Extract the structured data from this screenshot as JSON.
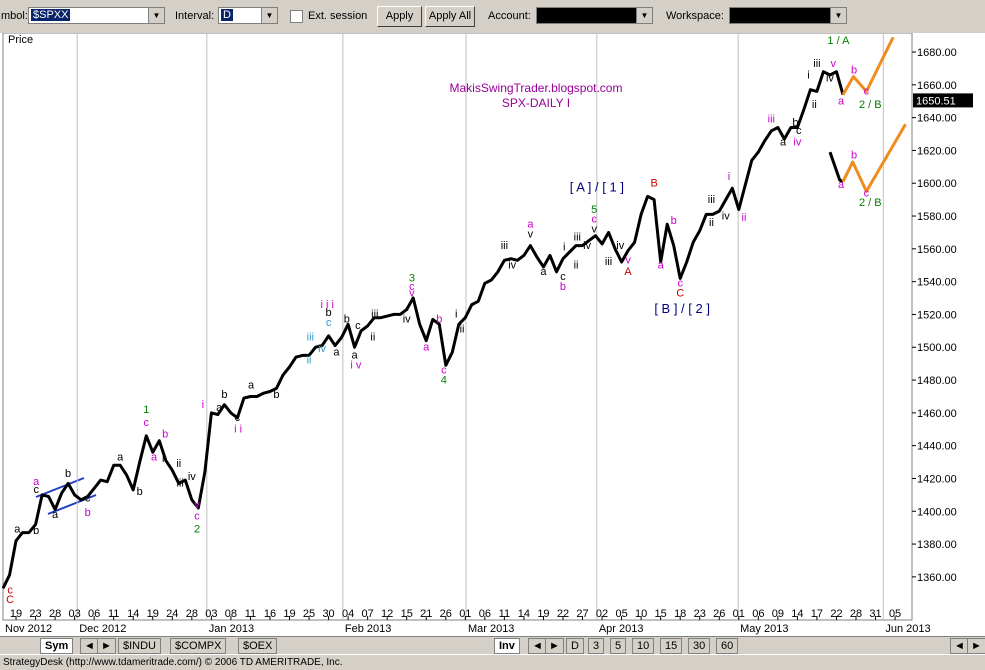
{
  "toolbar": {
    "symbol_label": "mbol:",
    "symbol": "$SPXX",
    "interval_label": "Interval:",
    "interval": "D",
    "ext_session": "Ext. session",
    "apply": "Apply",
    "apply_all": "Apply All",
    "account_label": "Account:",
    "workspace_label": "Workspace:"
  },
  "tabs": {
    "symbol_tab": "Sym",
    "indexes": [
      "$INDU",
      "$COMPX",
      "$OEX"
    ],
    "inv_tab": "Inv",
    "intervals": [
      "D",
      "3",
      "5",
      "10",
      "15",
      "30",
      "60"
    ]
  },
  "status_bar": "StrategyDesk (http://www.tdameritrade.com/) © 2006 TD AMERITRADE, Inc.",
  "chart_data": {
    "type": "line",
    "title": "SPX-DAILY I",
    "subtitle": "MakisSwingTrader.blogspot.com",
    "y_label": "Price",
    "last_price": 1650.51,
    "xlim": [
      0,
      139.6
    ],
    "ylim": [
      1333.7,
      1691.6
    ],
    "yticks": [
      {
        "value": 1360,
        "label": "1360.00"
      },
      {
        "value": 1380,
        "label": "1380.00"
      },
      {
        "value": 1400,
        "label": "1400.00"
      },
      {
        "value": 1420,
        "label": "1420.00"
      },
      {
        "value": 1440,
        "label": "1440.00"
      },
      {
        "value": 1460,
        "label": "1460.00"
      },
      {
        "value": 1480,
        "label": "1480.00"
      },
      {
        "value": 1500,
        "label": "1500.00"
      },
      {
        "value": 1520,
        "label": "1520.00"
      },
      {
        "value": 1540,
        "label": "1540.00"
      },
      {
        "value": 1560,
        "label": "1560.00"
      },
      {
        "value": 1580,
        "label": "1580.00"
      },
      {
        "value": 1600,
        "label": "1600.00"
      },
      {
        "value": 1620,
        "label": "1620.00"
      },
      {
        "value": 1640,
        "label": "1640.00"
      },
      {
        "value": 1660,
        "label": "1660.00"
      },
      {
        "value": 1680,
        "label": "1680.00"
      }
    ],
    "xticks": [
      {
        "value": 2,
        "label": "19"
      },
      {
        "value": 5,
        "label": "23"
      },
      {
        "value": 8,
        "label": "28"
      },
      {
        "value": 11,
        "label": "03"
      },
      {
        "value": 14,
        "label": "06"
      },
      {
        "value": 17,
        "label": "11"
      },
      {
        "value": 20,
        "label": "14"
      },
      {
        "value": 23,
        "label": "19"
      },
      {
        "value": 26,
        "label": "24"
      },
      {
        "value": 29,
        "label": "28"
      },
      {
        "value": 32,
        "label": "03"
      },
      {
        "value": 35,
        "label": "08"
      },
      {
        "value": 38,
        "label": "11"
      },
      {
        "value": 41,
        "label": "16"
      },
      {
        "value": 44,
        "label": "19"
      },
      {
        "value": 47,
        "label": "25"
      },
      {
        "value": 50,
        "label": "30"
      },
      {
        "value": 53,
        "label": "04"
      },
      {
        "value": 56,
        "label": "07"
      },
      {
        "value": 59,
        "label": "12"
      },
      {
        "value": 62,
        "label": "15"
      },
      {
        "value": 65,
        "label": "21"
      },
      {
        "value": 68,
        "label": "26"
      },
      {
        "value": 71,
        "label": "01"
      },
      {
        "value": 74,
        "label": "06"
      },
      {
        "value": 77,
        "label": "11"
      },
      {
        "value": 80,
        "label": "14"
      },
      {
        "value": 83,
        "label": "19"
      },
      {
        "value": 86,
        "label": "22"
      },
      {
        "value": 89,
        "label": "27"
      },
      {
        "value": 92,
        "label": "02"
      },
      {
        "value": 95,
        "label": "05"
      },
      {
        "value": 98,
        "label": "10"
      },
      {
        "value": 101,
        "label": "15"
      },
      {
        "value": 104,
        "label": "18"
      },
      {
        "value": 107,
        "label": "23"
      },
      {
        "value": 110,
        "label": "26"
      },
      {
        "value": 113,
        "label": "01"
      },
      {
        "value": 116,
        "label": "06"
      },
      {
        "value": 119,
        "label": "09"
      },
      {
        "value": 122,
        "label": "14"
      },
      {
        "value": 125,
        "label": "17"
      },
      {
        "value": 128,
        "label": "22"
      },
      {
        "value": 131,
        "label": "28"
      },
      {
        "value": 134,
        "label": "31"
      },
      {
        "value": 137,
        "label": "05"
      }
    ],
    "month_ticks": [
      {
        "value": 0,
        "label": "Nov 2012"
      },
      {
        "value": 11.4,
        "label": "Dec 2012"
      },
      {
        "value": 31.3,
        "label": "Jan 2013"
      },
      {
        "value": 52.2,
        "label": "Feb 2013"
      },
      {
        "value": 71.1,
        "label": "Mar 2013"
      },
      {
        "value": 91.2,
        "label": "Apr 2013"
      },
      {
        "value": 112.9,
        "label": "May 2013"
      },
      {
        "value": 135.2,
        "label": "Jun 2013"
      }
    ],
    "series": [
      {
        "color": "#000000",
        "values": [
          1353,
          1361,
          1382,
          1387,
          1387,
          1392,
          1410,
          1409,
          1401,
          1411,
          1417,
          1410,
          1407,
          1409,
          1414,
          1419,
          1418,
          1428,
          1428,
          1422,
          1413,
          1430,
          1446,
          1436,
          1443,
          1431,
          1425,
          1417,
          1419,
          1407,
          1402,
          1424,
          1460,
          1459,
          1465,
          1460,
          1457,
          1469,
          1470,
          1470,
          1472,
          1473,
          1475,
          1483,
          1488,
          1494,
          1495,
          1495,
          1500,
          1501,
          1507,
          1501,
          1506,
          1514,
          1500,
          1510,
          1513,
          1518,
          1518,
          1519,
          1520,
          1520,
          1523,
          1530,
          1514,
          1504,
          1517,
          1514,
          1489,
          1497,
          1514,
          1518,
          1526,
          1528,
          1539,
          1541,
          1546,
          1553,
          1554,
          1553,
          1556,
          1562,
          1555,
          1549,
          1556,
          1546,
          1554,
          1558,
          1562,
          1562,
          1565,
          1568,
          1563,
          1570,
          1560,
          1552,
          1559,
          1564,
          1581,
          1592,
          1590,
          1552,
          1575,
          1562,
          1542,
          1552,
          1564,
          1571,
          1581,
          1581,
          1583,
          1590,
          1597,
          1584,
          1599,
          1614,
          1619,
          1626,
          1632,
          1634,
          1627,
          1634,
          1634,
          1645,
          1657,
          1656,
          1668,
          1666,
          1668,
          1654
        ]
      },
      {
        "color": "#000000",
        "x": [
          127,
          128.5,
          129
        ],
        "values": [
          1619,
          1602,
          1601
        ]
      },
      {
        "color": "#f08c1e",
        "x": [
          129,
          130.6,
          132.6,
          136.7
        ],
        "values": [
          1654,
          1665,
          1656,
          1689
        ]
      },
      {
        "color": "#f08c1e",
        "x": [
          129,
          130.5,
          132.6,
          138.6
        ],
        "values": [
          1601,
          1613,
          1595,
          1636
        ]
      }
    ],
    "annotations": [
      {
        "text": "c",
        "color": "#cc0000",
        "x": 1.1,
        "y": 1350
      },
      {
        "text": "C",
        "color": "#cc0000",
        "x": 1.1,
        "y": 1344
      },
      {
        "text": "a",
        "color": "#000000",
        "x": 2.2,
        "y": 1387
      },
      {
        "text": "b",
        "color": "#000000",
        "x": 5.1,
        "y": 1386
      },
      {
        "text": "a",
        "color": "#cc00cc",
        "x": 5.1,
        "y": 1416
      },
      {
        "text": "c",
        "color": "#000000",
        "x": 5.1,
        "y": 1411
      },
      {
        "text": "a",
        "color": "#000000",
        "x": 8,
        "y": 1396
      },
      {
        "text": "b",
        "color": "#000000",
        "x": 10,
        "y": 1421
      },
      {
        "text": "c",
        "color": "#000000",
        "x": 13,
        "y": 1406
      },
      {
        "text": "b",
        "color": "#cc00cc",
        "x": 13,
        "y": 1397
      },
      {
        "text": "a",
        "color": "#000000",
        "x": 18,
        "y": 1431
      },
      {
        "text": "b",
        "color": "#000000",
        "x": 21,
        "y": 1410
      },
      {
        "text": "1",
        "color": "#008000",
        "x": 22,
        "y": 1460
      },
      {
        "text": "c",
        "color": "#cc00cc",
        "x": 22,
        "y": 1452
      },
      {
        "text": "a",
        "color": "#cc00cc",
        "x": 23.2,
        "y": 1431
      },
      {
        "text": "b",
        "color": "#cc00cc",
        "x": 24.9,
        "y": 1445
      },
      {
        "text": "i",
        "color": "#000000",
        "x": 24.6,
        "y": 1430
      },
      {
        "text": "ii",
        "color": "#000000",
        "x": 27,
        "y": 1427
      },
      {
        "text": "iii",
        "color": "#000000",
        "x": 27.2,
        "y": 1415
      },
      {
        "text": "iv",
        "color": "#000000",
        "x": 29,
        "y": 1419
      },
      {
        "text": "v",
        "color": "#cc00cc",
        "x": 29.8,
        "y": 1402
      },
      {
        "text": "c",
        "color": "#cc00cc",
        "x": 29.8,
        "y": 1395
      },
      {
        "text": "2",
        "color": "#008000",
        "x": 29.8,
        "y": 1387
      },
      {
        "text": "i",
        "color": "#cc00cc",
        "x": 30.7,
        "y": 1463
      },
      {
        "text": "b",
        "color": "#000000",
        "x": 34,
        "y": 1469
      },
      {
        "text": "a",
        "color": "#000000",
        "x": 33.2,
        "y": 1461
      },
      {
        "text": "c",
        "color": "#000000",
        "x": 36,
        "y": 1455
      },
      {
        "text": "i i",
        "color": "#cc00cc",
        "x": 36.1,
        "y": 1448
      },
      {
        "text": "a",
        "color": "#000000",
        "x": 38.1,
        "y": 1475
      },
      {
        "text": "b",
        "color": "#000000",
        "x": 42,
        "y": 1469
      },
      {
        "text": "iii",
        "color": "#3399cc",
        "x": 47.2,
        "y": 1504
      },
      {
        "text": "ii",
        "color": "#3399cc",
        "x": 47,
        "y": 1490
      },
      {
        "text": "iv",
        "color": "#3399cc",
        "x": 49,
        "y": 1497
      },
      {
        "text": "c",
        "color": "#3399cc",
        "x": 50,
        "y": 1513
      },
      {
        "text": "b",
        "color": "#000000",
        "x": 50,
        "y": 1519
      },
      {
        "text": "a",
        "color": "#000000",
        "x": 51.2,
        "y": 1495
      },
      {
        "text": "i i i",
        "color": "#cc00cc",
        "x": 49.8,
        "y": 1524
      },
      {
        "text": "b",
        "color": "#000000",
        "x": 52.8,
        "y": 1515
      },
      {
        "text": "i v",
        "color": "#cc00cc",
        "x": 54.2,
        "y": 1487
      },
      {
        "text": "c",
        "color": "#000000",
        "x": 54.5,
        "y": 1511
      },
      {
        "text": "a",
        "color": "#000000",
        "x": 54,
        "y": 1493
      },
      {
        "text": "iii",
        "color": "#000000",
        "x": 57.1,
        "y": 1518
      },
      {
        "text": "ii",
        "color": "#000000",
        "x": 56.8,
        "y": 1504
      },
      {
        "text": "iv",
        "color": "#000000",
        "x": 62,
        "y": 1515
      },
      {
        "text": "3",
        "color": "#008000",
        "x": 62.8,
        "y": 1540
      },
      {
        "text": "c",
        "color": "#cc00cc",
        "x": 62.8,
        "y": 1535
      },
      {
        "text": "v",
        "color": "#cc00cc",
        "x": 62.8,
        "y": 1531
      },
      {
        "text": "a",
        "color": "#cc00cc",
        "x": 65,
        "y": 1498
      },
      {
        "text": "b",
        "color": "#cc00cc",
        "x": 67,
        "y": 1515
      },
      {
        "text": "c",
        "color": "#cc00cc",
        "x": 67.7,
        "y": 1484
      },
      {
        "text": "4",
        "color": "#008000",
        "x": 67.7,
        "y": 1478
      },
      {
        "text": "i",
        "color": "#000000",
        "x": 69.6,
        "y": 1518
      },
      {
        "text": "ii",
        "color": "#000000",
        "x": 70.5,
        "y": 1509
      },
      {
        "text": "iii",
        "color": "#000000",
        "x": 77,
        "y": 1560
      },
      {
        "text": "iv",
        "color": "#000000",
        "x": 78.2,
        "y": 1548
      },
      {
        "text": "a",
        "color": "#cc00cc",
        "x": 81,
        "y": 1573
      },
      {
        "text": "v",
        "color": "#000000",
        "x": 81,
        "y": 1567
      },
      {
        "text": "a",
        "color": "#000000",
        "x": 83,
        "y": 1544
      },
      {
        "text": "c",
        "color": "#000000",
        "x": 86,
        "y": 1541
      },
      {
        "text": "b",
        "color": "#cc00cc",
        "x": 86,
        "y": 1535
      },
      {
        "text": "i",
        "color": "#000000",
        "x": 86.2,
        "y": 1559
      },
      {
        "text": "ii",
        "color": "#000000",
        "x": 88,
        "y": 1548
      },
      {
        "text": "iii",
        "color": "#000000",
        "x": 88.2,
        "y": 1565
      },
      {
        "text": "iv",
        "color": "#000000",
        "x": 89.7,
        "y": 1560
      },
      {
        "text": "5",
        "color": "#008000",
        "x": 90.8,
        "y": 1582
      },
      {
        "text": "c",
        "color": "#cc00cc",
        "x": 90.8,
        "y": 1576
      },
      {
        "text": "v",
        "color": "#000000",
        "x": 90.8,
        "y": 1570
      },
      {
        "text": "iii",
        "color": "#000000",
        "x": 93,
        "y": 1550
      },
      {
        "text": "iv",
        "color": "#000000",
        "x": 94.8,
        "y": 1560
      },
      {
        "text": "v",
        "color": "#cc00cc",
        "x": 96,
        "y": 1551
      },
      {
        "text": "A",
        "color": "#cc0000",
        "x": 96,
        "y": 1544
      },
      {
        "text": "[ A ] / [ 1 ]",
        "color": "#000080",
        "x": 91.2,
        "y": 1595
      },
      {
        "text": "B",
        "color": "#cc0000",
        "x": 100,
        "y": 1598
      },
      {
        "text": "b",
        "color": "#cc00cc",
        "x": 103,
        "y": 1575
      },
      {
        "text": "a",
        "color": "#cc00cc",
        "x": 101,
        "y": 1548
      },
      {
        "text": "c",
        "color": "#cc00cc",
        "x": 104,
        "y": 1537
      },
      {
        "text": "C",
        "color": "#cc0000",
        "x": 104,
        "y": 1531
      },
      {
        "text": "[ B ] / [ 2 ]",
        "color": "#000080",
        "x": 104.3,
        "y": 1521
      },
      {
        "text": "i",
        "color": "#cc00cc",
        "x": 111.5,
        "y": 1602
      },
      {
        "text": "iii",
        "color": "#000000",
        "x": 108.8,
        "y": 1588
      },
      {
        "text": "ii",
        "color": "#000000",
        "x": 108.8,
        "y": 1574
      },
      {
        "text": "iv",
        "color": "#000000",
        "x": 111,
        "y": 1578
      },
      {
        "text": "ii",
        "color": "#cc00cc",
        "x": 113.8,
        "y": 1577
      },
      {
        "text": "iii",
        "color": "#cc00cc",
        "x": 118,
        "y": 1637
      },
      {
        "text": "a",
        "color": "#000000",
        "x": 119.8,
        "y": 1623
      },
      {
        "text": "b",
        "color": "#000000",
        "x": 121.7,
        "y": 1635
      },
      {
        "text": "c",
        "color": "#000000",
        "x": 122.2,
        "y": 1630
      },
      {
        "text": "iv",
        "color": "#cc00cc",
        "x": 122,
        "y": 1623
      },
      {
        "text": "i",
        "color": "#000000",
        "x": 123.7,
        "y": 1664
      },
      {
        "text": "ii",
        "color": "#000000",
        "x": 124.6,
        "y": 1646
      },
      {
        "text": "iii",
        "color": "#000000",
        "x": 125,
        "y": 1671
      },
      {
        "text": "iv",
        "color": "#000000",
        "x": 127,
        "y": 1662
      },
      {
        "text": "v",
        "color": "#cc00cc",
        "x": 127.5,
        "y": 1671
      },
      {
        "text": "1 / A",
        "color": "#008000",
        "x": 128.3,
        "y": 1685
      },
      {
        "text": "a",
        "color": "#cc00cc",
        "x": 128.7,
        "y": 1648
      },
      {
        "text": "b",
        "color": "#cc00cc",
        "x": 130.7,
        "y": 1667
      },
      {
        "text": "c",
        "color": "#cc00cc",
        "x": 132.6,
        "y": 1654
      },
      {
        "text": "2 / B",
        "color": "#008000",
        "x": 133.2,
        "y": 1646
      },
      {
        "text": "a",
        "color": "#cc00cc",
        "x": 128.7,
        "y": 1597
      },
      {
        "text": "b",
        "color": "#cc00cc",
        "x": 130.7,
        "y": 1615
      },
      {
        "text": "c",
        "color": "#cc00cc",
        "x": 132.6,
        "y": 1592
      },
      {
        "text": "2 / B",
        "color": "#008000",
        "x": 133.2,
        "y": 1586
      }
    ]
  }
}
